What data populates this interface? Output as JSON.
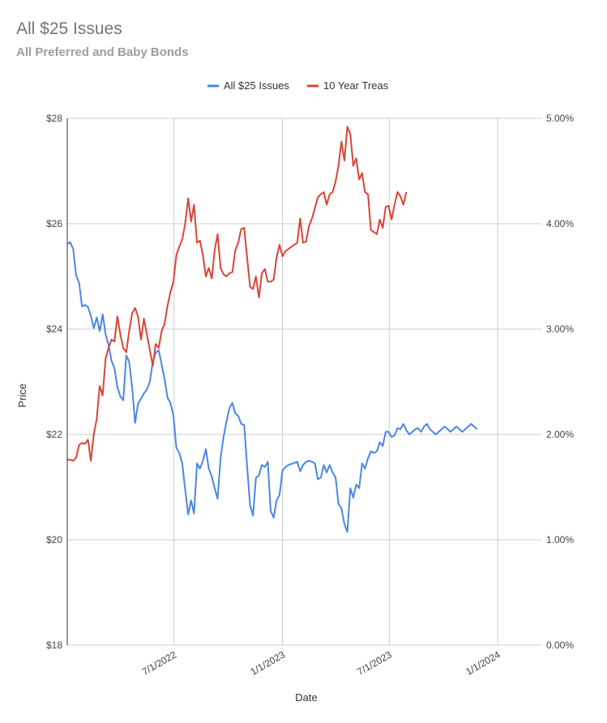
{
  "title": "All $25 Issues",
  "subtitle": "All Preferred and Baby Bonds",
  "chart_data": {
    "type": "line",
    "title": "All $25 Issues",
    "subtitle": "All Preferred and Baby Bonds",
    "xlabel": "Date",
    "ylabel": "Price",
    "y2label": "",
    "xlim": [
      "2022-01-01",
      "2024-03-15"
    ],
    "ylim": [
      18,
      28
    ],
    "y2lim": [
      0,
      5
    ],
    "y_ticks": [
      "$18",
      "$20",
      "$22",
      "$24",
      "$26",
      "$28"
    ],
    "y2_ticks": [
      "0.00%",
      "1.00%",
      "2.00%",
      "3.00%",
      "4.00%",
      "5.00%"
    ],
    "x_ticks": [
      {
        "date": "2022-07-01",
        "label": "7/1/2022"
      },
      {
        "date": "2023-01-01",
        "label": "1/1/2023"
      },
      {
        "date": "2023-07-01",
        "label": "7/1/2023"
      },
      {
        "date": "2024-01-01",
        "label": "1/1/2024"
      }
    ],
    "grid": true,
    "legend": "top-center",
    "series": [
      {
        "name": "All $25 Issues",
        "axis": "left",
        "color": "#4a86e8",
        "points": [
          [
            "2022-01-01",
            25.62
          ],
          [
            "2022-01-06",
            25.65
          ],
          [
            "2022-01-11",
            25.52
          ],
          [
            "2022-01-16",
            25.02
          ],
          [
            "2022-01-21",
            24.88
          ],
          [
            "2022-01-26",
            24.43
          ],
          [
            "2022-01-31",
            24.46
          ],
          [
            "2022-02-05",
            24.42
          ],
          [
            "2022-02-10",
            24.25
          ],
          [
            "2022-02-15",
            24.02
          ],
          [
            "2022-02-20",
            24.22
          ],
          [
            "2022-02-25",
            23.96
          ],
          [
            "2022-03-02",
            24.28
          ],
          [
            "2022-03-07",
            23.9
          ],
          [
            "2022-03-12",
            23.7
          ],
          [
            "2022-03-17",
            23.4
          ],
          [
            "2022-03-22",
            23.26
          ],
          [
            "2022-03-27",
            22.9
          ],
          [
            "2022-04-01",
            22.72
          ],
          [
            "2022-04-06",
            22.65
          ],
          [
            "2022-04-11",
            23.5
          ],
          [
            "2022-04-16",
            23.38
          ],
          [
            "2022-04-21",
            22.9
          ],
          [
            "2022-04-26",
            22.22
          ],
          [
            "2022-05-01",
            22.58
          ],
          [
            "2022-05-06",
            22.68
          ],
          [
            "2022-05-11",
            22.78
          ],
          [
            "2022-05-16",
            22.85
          ],
          [
            "2022-05-21",
            23.0
          ],
          [
            "2022-05-26",
            23.38
          ],
          [
            "2022-05-31",
            23.55
          ],
          [
            "2022-06-05",
            23.6
          ],
          [
            "2022-06-10",
            23.33
          ],
          [
            "2022-06-15",
            23.05
          ],
          [
            "2022-06-20",
            22.7
          ],
          [
            "2022-06-25",
            22.6
          ],
          [
            "2022-06-30",
            22.35
          ],
          [
            "2022-07-05",
            21.75
          ],
          [
            "2022-07-10",
            21.65
          ],
          [
            "2022-07-15",
            21.45
          ],
          [
            "2022-07-20",
            20.95
          ],
          [
            "2022-07-25",
            20.48
          ],
          [
            "2022-07-30",
            20.75
          ],
          [
            "2022-08-04",
            20.5
          ],
          [
            "2022-08-09",
            21.45
          ],
          [
            "2022-08-14",
            21.35
          ],
          [
            "2022-08-19",
            21.5
          ],
          [
            "2022-08-24",
            21.72
          ],
          [
            "2022-08-29",
            21.35
          ],
          [
            "2022-09-03",
            21.2
          ],
          [
            "2022-09-08",
            20.98
          ],
          [
            "2022-09-13",
            20.78
          ],
          [
            "2022-09-18",
            21.55
          ],
          [
            "2022-09-23",
            21.95
          ],
          [
            "2022-09-28",
            22.25
          ],
          [
            "2022-10-03",
            22.5
          ],
          [
            "2022-10-08",
            22.6
          ],
          [
            "2022-10-13",
            22.4
          ],
          [
            "2022-10-18",
            22.35
          ],
          [
            "2022-10-23",
            22.2
          ],
          [
            "2022-10-28",
            22.18
          ],
          [
            "2022-11-02",
            21.4
          ],
          [
            "2022-11-07",
            20.65
          ],
          [
            "2022-11-12",
            20.46
          ],
          [
            "2022-11-17",
            21.18
          ],
          [
            "2022-11-22",
            21.22
          ],
          [
            "2022-11-27",
            21.42
          ],
          [
            "2022-12-02",
            21.38
          ],
          [
            "2022-12-07",
            21.48
          ],
          [
            "2022-12-12",
            20.55
          ],
          [
            "2022-12-17",
            20.42
          ],
          [
            "2022-12-22",
            20.75
          ],
          [
            "2022-12-27",
            20.85
          ],
          [
            "2023-01-01",
            21.32
          ],
          [
            "2023-01-06",
            21.38
          ],
          [
            "2023-01-11",
            21.42
          ],
          [
            "2023-01-16",
            21.44
          ],
          [
            "2023-01-21",
            21.46
          ],
          [
            "2023-01-26",
            21.48
          ],
          [
            "2023-01-31",
            21.3
          ],
          [
            "2023-02-05",
            21.42
          ],
          [
            "2023-02-10",
            21.48
          ],
          [
            "2023-02-15",
            21.5
          ],
          [
            "2023-02-20",
            21.48
          ],
          [
            "2023-02-25",
            21.45
          ],
          [
            "2023-03-02",
            21.15
          ],
          [
            "2023-03-07",
            21.18
          ],
          [
            "2023-03-12",
            21.42
          ],
          [
            "2023-03-17",
            21.28
          ],
          [
            "2023-03-22",
            21.42
          ],
          [
            "2023-03-27",
            21.28
          ],
          [
            "2023-04-01",
            21.18
          ],
          [
            "2023-04-06",
            20.68
          ],
          [
            "2023-04-11",
            20.6
          ],
          [
            "2023-04-16",
            20.3
          ],
          [
            "2023-04-21",
            20.15
          ],
          [
            "2023-04-26",
            20.98
          ],
          [
            "2023-05-01",
            20.8
          ],
          [
            "2023-05-06",
            21.05
          ],
          [
            "2023-05-11",
            20.98
          ],
          [
            "2023-05-16",
            21.45
          ],
          [
            "2023-05-21",
            21.35
          ],
          [
            "2023-05-26",
            21.55
          ],
          [
            "2023-05-31",
            21.68
          ],
          [
            "2023-06-05",
            21.65
          ],
          [
            "2023-06-10",
            21.68
          ],
          [
            "2023-06-15",
            21.85
          ],
          [
            "2023-06-20",
            21.78
          ],
          [
            "2023-06-25",
            22.05
          ],
          [
            "2023-06-30",
            22.05
          ],
          [
            "2023-07-05",
            21.95
          ],
          [
            "2023-07-10",
            21.98
          ],
          [
            "2023-07-15",
            22.12
          ],
          [
            "2023-07-20",
            22.1
          ],
          [
            "2023-07-25",
            22.2
          ],
          [
            "2023-07-30",
            22.08
          ],
          [
            "2023-08-04",
            22.0
          ],
          [
            "2023-08-09",
            22.05
          ],
          [
            "2023-08-14",
            22.1
          ],
          [
            "2023-08-19",
            22.12
          ],
          [
            "2023-08-24",
            22.05
          ],
          [
            "2023-08-29",
            22.15
          ],
          [
            "2023-09-03",
            22.2
          ],
          [
            "2023-09-08",
            22.1
          ],
          [
            "2023-09-13",
            22.05
          ],
          [
            "2023-09-18",
            22.0
          ],
          [
            "2023-09-23",
            22.05
          ],
          [
            "2023-09-28",
            22.1
          ],
          [
            "2023-10-03",
            22.15
          ],
          [
            "2023-10-08",
            22.1
          ],
          [
            "2023-10-13",
            22.05
          ],
          [
            "2023-10-18",
            22.1
          ],
          [
            "2023-10-23",
            22.15
          ],
          [
            "2023-10-28",
            22.1
          ],
          [
            "2023-11-02",
            22.05
          ],
          [
            "2023-11-07",
            22.1
          ],
          [
            "2023-11-12",
            22.15
          ],
          [
            "2023-11-17",
            22.2
          ],
          [
            "2023-11-22",
            22.15
          ],
          [
            "2023-11-27",
            22.1
          ]
        ]
      },
      {
        "name": "10 Year Treas",
        "axis": "right",
        "color": "#db4437",
        "points": [
          [
            "2022-01-01",
            1.76
          ],
          [
            "2022-01-06",
            1.76
          ],
          [
            "2022-01-11",
            1.75
          ],
          [
            "2022-01-16",
            1.78
          ],
          [
            "2022-01-21",
            1.9
          ],
          [
            "2022-01-26",
            1.92
          ],
          [
            "2022-01-31",
            1.91
          ],
          [
            "2022-02-05",
            1.95
          ],
          [
            "2022-02-10",
            1.75
          ],
          [
            "2022-02-15",
            2.0
          ],
          [
            "2022-02-20",
            2.15
          ],
          [
            "2022-02-25",
            2.46
          ],
          [
            "2022-03-02",
            2.37
          ],
          [
            "2022-03-07",
            2.72
          ],
          [
            "2022-03-12",
            2.82
          ],
          [
            "2022-03-17",
            2.9
          ],
          [
            "2022-03-22",
            2.88
          ],
          [
            "2022-03-27",
            3.12
          ],
          [
            "2022-04-01",
            2.95
          ],
          [
            "2022-04-06",
            2.82
          ],
          [
            "2022-04-11",
            2.78
          ],
          [
            "2022-04-16",
            2.98
          ],
          [
            "2022-04-21",
            3.15
          ],
          [
            "2022-04-26",
            3.2
          ],
          [
            "2022-05-01",
            3.12
          ],
          [
            "2022-05-06",
            2.9
          ],
          [
            "2022-05-11",
            3.1
          ],
          [
            "2022-05-16",
            2.95
          ],
          [
            "2022-05-21",
            2.8
          ],
          [
            "2022-05-26",
            2.65
          ],
          [
            "2022-05-31",
            2.86
          ],
          [
            "2022-06-05",
            2.82
          ],
          [
            "2022-06-10",
            2.98
          ],
          [
            "2022-06-15",
            3.05
          ],
          [
            "2022-06-20",
            3.22
          ],
          [
            "2022-06-25",
            3.35
          ],
          [
            "2022-06-30",
            3.45
          ],
          [
            "2022-07-05",
            3.7
          ],
          [
            "2022-07-10",
            3.78
          ],
          [
            "2022-07-15",
            3.85
          ],
          [
            "2022-07-20",
            4.0
          ],
          [
            "2022-07-25",
            4.24
          ],
          [
            "2022-07-30",
            4.02
          ],
          [
            "2022-08-04",
            4.18
          ],
          [
            "2022-08-09",
            3.82
          ],
          [
            "2022-08-14",
            3.84
          ],
          [
            "2022-08-19",
            3.7
          ],
          [
            "2022-08-24",
            3.5
          ],
          [
            "2022-08-29",
            3.58
          ],
          [
            "2022-09-03",
            3.48
          ],
          [
            "2022-09-08",
            3.75
          ],
          [
            "2022-09-13",
            3.9
          ],
          [
            "2022-09-18",
            3.58
          ],
          [
            "2022-09-23",
            3.52
          ],
          [
            "2022-09-28",
            3.5
          ],
          [
            "2022-10-03",
            3.53
          ],
          [
            "2022-10-08",
            3.54
          ],
          [
            "2022-10-13",
            3.75
          ],
          [
            "2022-10-18",
            3.82
          ],
          [
            "2022-10-23",
            3.95
          ],
          [
            "2022-10-28",
            3.96
          ],
          [
            "2022-11-02",
            3.68
          ],
          [
            "2022-11-07",
            3.4
          ],
          [
            "2022-11-12",
            3.38
          ],
          [
            "2022-11-17",
            3.5
          ],
          [
            "2022-11-22",
            3.3
          ],
          [
            "2022-11-27",
            3.53
          ],
          [
            "2022-12-02",
            3.57
          ],
          [
            "2022-12-07",
            3.45
          ],
          [
            "2022-12-12",
            3.45
          ],
          [
            "2022-12-17",
            3.47
          ],
          [
            "2022-12-22",
            3.68
          ],
          [
            "2022-12-27",
            3.8
          ],
          [
            "2023-01-01",
            3.69
          ],
          [
            "2023-01-06",
            3.74
          ],
          [
            "2023-01-11",
            3.76
          ],
          [
            "2023-01-16",
            3.78
          ],
          [
            "2023-01-21",
            3.8
          ],
          [
            "2023-01-26",
            3.82
          ],
          [
            "2023-01-31",
            4.05
          ],
          [
            "2023-02-05",
            3.82
          ],
          [
            "2023-02-10",
            3.83
          ],
          [
            "2023-02-15",
            3.98
          ],
          [
            "2023-02-20",
            4.05
          ],
          [
            "2023-02-25",
            4.15
          ],
          [
            "2023-03-02",
            4.25
          ],
          [
            "2023-03-07",
            4.28
          ],
          [
            "2023-03-12",
            4.3
          ],
          [
            "2023-03-17",
            4.18
          ],
          [
            "2023-03-22",
            4.28
          ],
          [
            "2023-03-27",
            4.3
          ],
          [
            "2023-04-01",
            4.4
          ],
          [
            "2023-04-06",
            4.55
          ],
          [
            "2023-04-11",
            4.78
          ],
          [
            "2023-04-16",
            4.6
          ],
          [
            "2023-04-21",
            4.92
          ],
          [
            "2023-04-26",
            4.85
          ],
          [
            "2023-05-01",
            4.55
          ],
          [
            "2023-05-06",
            4.62
          ],
          [
            "2023-05-11",
            4.42
          ],
          [
            "2023-05-16",
            4.48
          ],
          [
            "2023-05-21",
            4.3
          ],
          [
            "2023-05-26",
            4.28
          ],
          [
            "2023-05-31",
            3.94
          ],
          [
            "2023-06-05",
            3.92
          ],
          [
            "2023-06-10",
            3.9
          ],
          [
            "2023-06-15",
            4.04
          ],
          [
            "2023-06-20",
            3.96
          ],
          [
            "2023-06-25",
            4.16
          ],
          [
            "2023-06-30",
            4.17
          ],
          [
            "2023-07-05",
            4.04
          ],
          [
            "2023-07-10",
            4.18
          ],
          [
            "2023-07-15",
            4.3
          ],
          [
            "2023-07-20",
            4.26
          ],
          [
            "2023-07-25",
            4.18
          ],
          [
            "2023-07-30",
            4.3
          ]
        ]
      }
    ]
  }
}
